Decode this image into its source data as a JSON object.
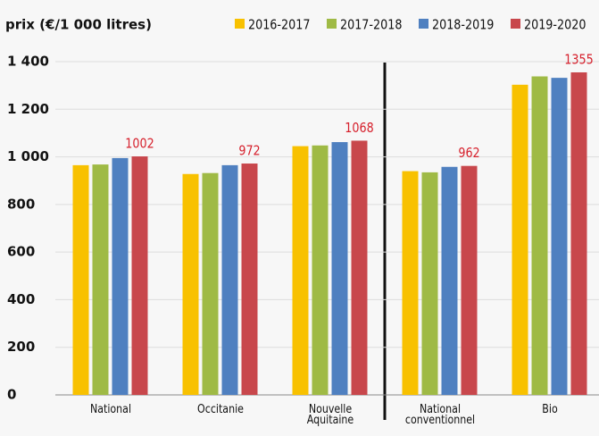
{
  "chart_data": {
    "type": "bar",
    "title": "prix (€/1 000 litres)",
    "categories": [
      "National",
      "Occitanie",
      "Nouvelle Aquitaine",
      "National conventionnel",
      "Bio"
    ],
    "series": [
      {
        "name": "2016-2017",
        "color": "#f8c100",
        "values": [
          965,
          928,
          1045,
          940,
          1303
        ]
      },
      {
        "name": "2017-2018",
        "color": "#9fba45",
        "values": [
          968,
          932,
          1048,
          935,
          1338
        ]
      },
      {
        "name": "2018-2019",
        "color": "#4f80c0",
        "values": [
          995,
          965,
          1062,
          958,
          1332
        ]
      },
      {
        "name": "2019-2020",
        "color": "#c8474c",
        "values": [
          1002,
          972,
          1068,
          962,
          1355
        ],
        "show_labels": true
      }
    ],
    "ylim": [
      0,
      1400
    ],
    "yticks": [
      0,
      200,
      400,
      600,
      800,
      {
        "value": 1000,
        "label": "1 000"
      },
      {
        "value": 1200,
        "label": "1 200"
      },
      {
        "value": 1400,
        "label": "1 400"
      }
    ],
    "grid": true,
    "legend": "top-right",
    "label_color": "#d6202c"
  }
}
